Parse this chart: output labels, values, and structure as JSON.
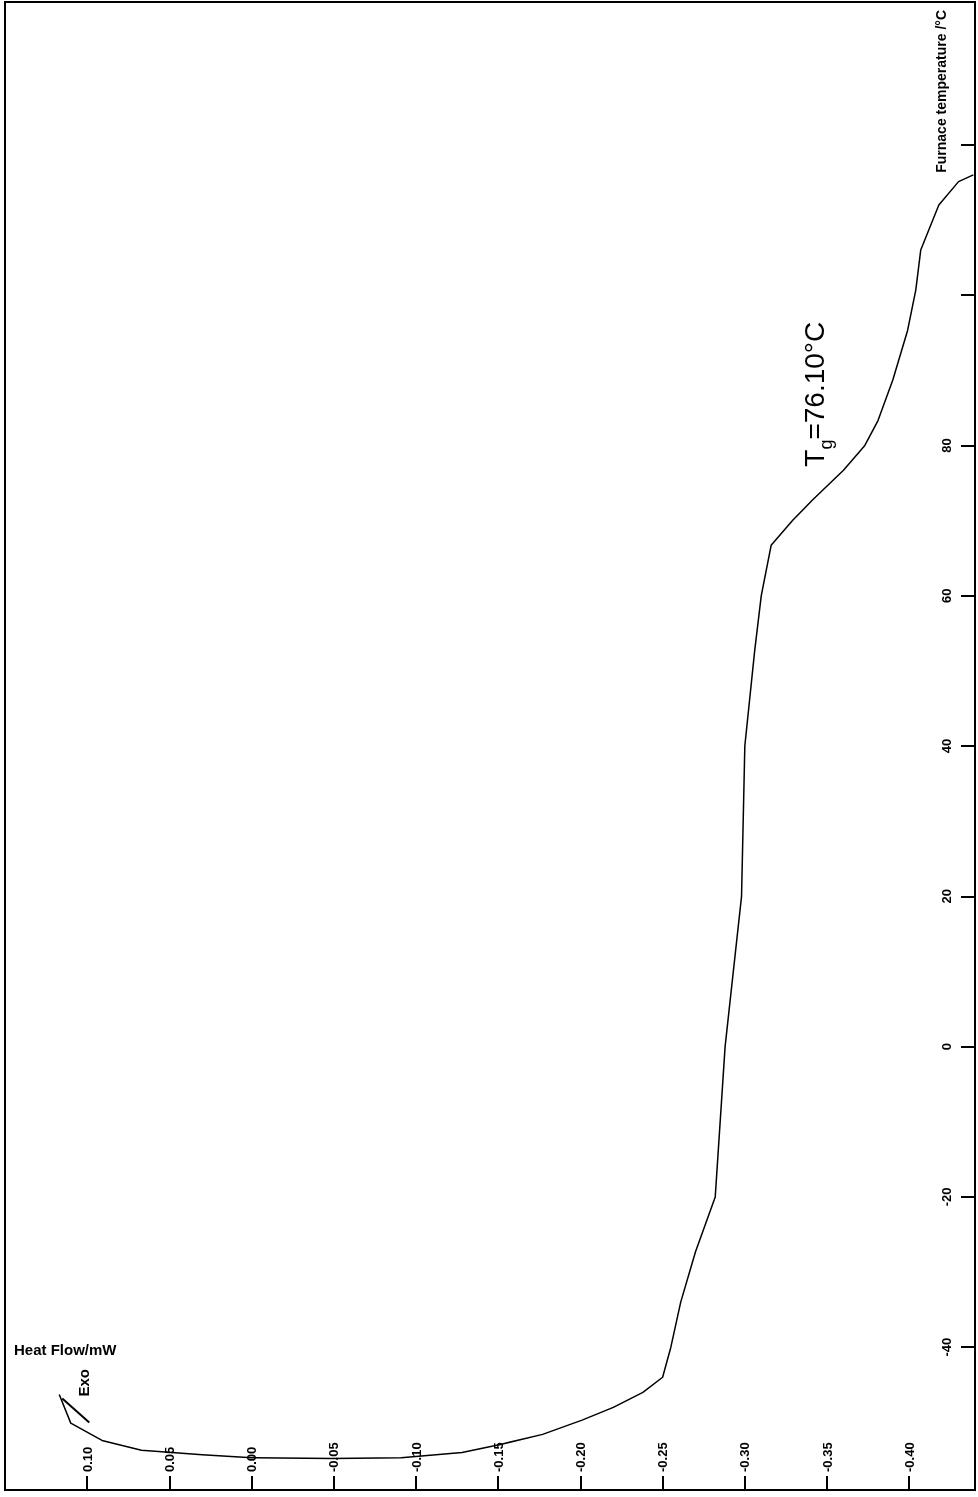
{
  "chart_data": {
    "type": "line",
    "xlabel": "Heat Flow/mW",
    "ylabel": "Furnace temperature /°C",
    "color": "#000000",
    "x": [
      0.117,
      0.11,
      0.091,
      0.067,
      0.03,
      0.0,
      -0.049,
      -0.091,
      -0.128,
      -0.152,
      -0.177,
      -0.201,
      -0.22,
      -0.238,
      -0.25,
      -0.255,
      -0.261,
      -0.27,
      -0.282,
      -0.288,
      -0.298,
      -0.3,
      -0.306,
      -0.31,
      -0.316,
      -0.329,
      -0.341,
      -0.36,
      -0.373,
      -0.381,
      -0.39,
      -0.399,
      -0.404,
      -0.407,
      -0.418,
      -0.43,
      -0.439
    ],
    "values": [
      -46.3,
      -50.1,
      -52.4,
      -53.7,
      -54.3,
      -54.7,
      -54.8,
      -54.7,
      -54.0,
      -52.9,
      -51.6,
      -49.7,
      -48.0,
      -46.0,
      -44.0,
      -40.0,
      -34.0,
      -27.3,
      -20.0,
      0,
      20,
      40,
      52.7,
      60,
      66.7,
      70,
      72.7,
      76.7,
      80,
      83.3,
      88.7,
      95.3,
      100.7,
      106,
      112,
      115.1,
      116
    ],
    "xlim": [
      0.15,
      -0.44
    ],
    "xticks": [
      {
        "value": 0.1,
        "label": "0.10"
      },
      {
        "value": 0.05,
        "label": "0.05"
      },
      {
        "value": 0,
        "label": "0.00"
      },
      {
        "value": -0.05,
        "label": "-0.05"
      },
      {
        "value": -0.1,
        "label": "-0.10"
      },
      {
        "value": -0.15,
        "label": "-0.15"
      },
      {
        "value": -0.2,
        "label": "-0.20"
      },
      {
        "value": -0.25,
        "label": "-0.25"
      },
      {
        "value": -0.3,
        "label": "-0.30"
      },
      {
        "value": -0.35,
        "label": "-0.35"
      },
      {
        "value": -0.4,
        "label": "-0.40"
      }
    ],
    "ylim": [
      -59,
      139
    ],
    "yticks": [
      -40,
      -20,
      0,
      20,
      40,
      60,
      80,
      {
        "value": 100,
        "label": null
      },
      {
        "value": 120,
        "label": null
      }
    ],
    "annotations": [
      "Exo",
      {
        "text": "T$_{g}$=76.10°C",
        "x": -0.356,
        "y": 76.1
      }
    ]
  }
}
